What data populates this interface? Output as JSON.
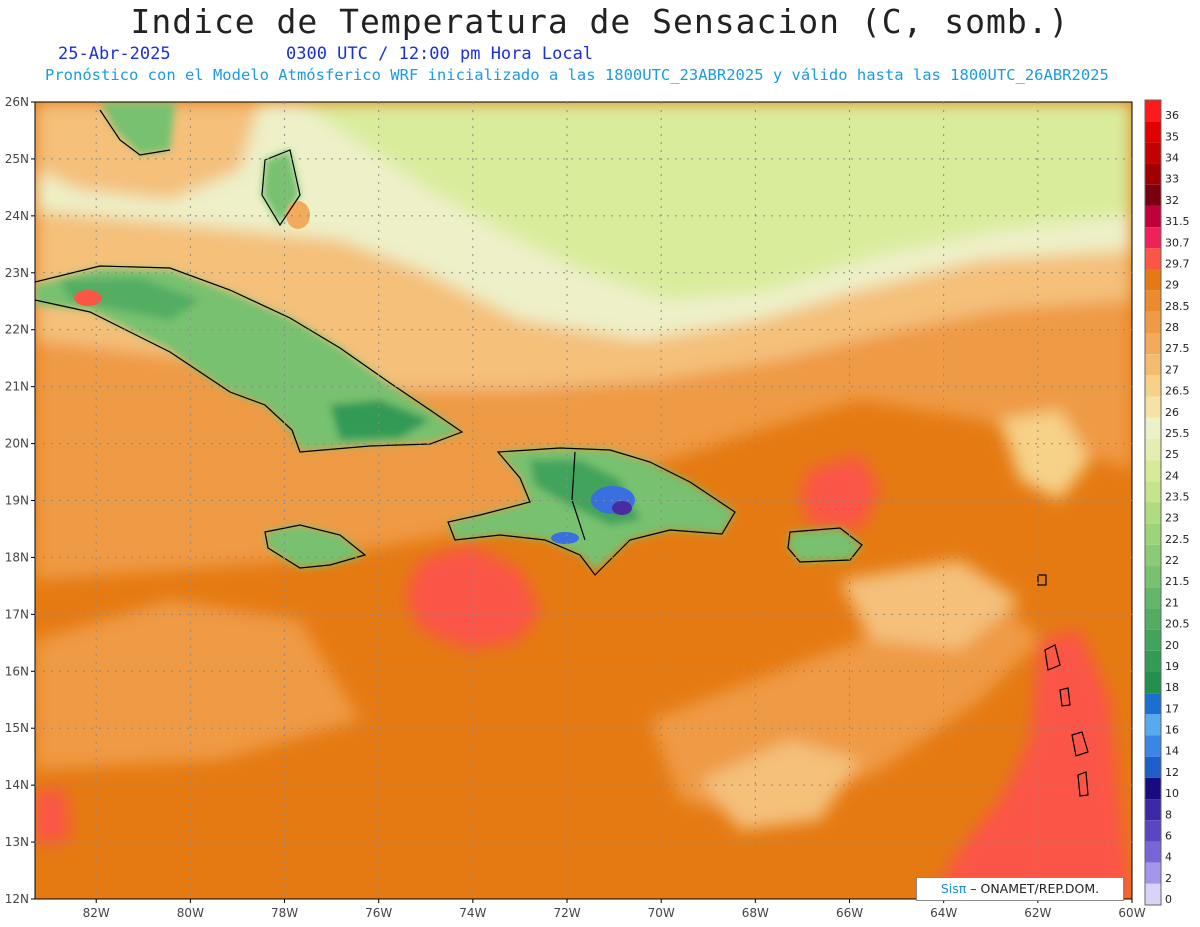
{
  "header": {
    "title": "Indice de Temperatura de Sensacion (C, somb.)",
    "date": "25-Abr-2025",
    "time": "0300 UTC / 12:00 pm Hora Local",
    "forecast_note": "Pronóstico con el Modelo Atmósferico WRF inicializado a las 1800UTC_23ABR2025 y válido hasta las  1800UTC_26ABR2025"
  },
  "map": {
    "lat_labels": [
      "26N",
      "25N",
      "24N",
      "23N",
      "22N",
      "21N",
      "20N",
      "19N",
      "18N",
      "17N",
      "16N",
      "15N",
      "14N",
      "13N",
      "12N"
    ],
    "lon_labels": [
      "82W",
      "80W",
      "78W",
      "76W",
      "74W",
      "72W",
      "70W",
      "68W",
      "66W",
      "64W",
      "62W",
      "60W"
    ],
    "lat_range": [
      12,
      26
    ],
    "lon_range": [
      -83.3,
      -60
    ],
    "grid": true,
    "colors": {
      "ocean_warm": "#e57a12",
      "ocean_mid": "#ef9a45",
      "ocean_cool": "#f4c07a",
      "north_light": "#d9ec9c",
      "north_pale": "#eef0c8",
      "hot_spot": "#fb5546",
      "land_green": "#6bbf6c",
      "land_dark": "#2f9a4c",
      "mountain_blue": "#3a6fe0",
      "mountain_violet": "#4a2ba0"
    }
  },
  "legend": {
    "values": [
      "36",
      "35",
      "34",
      "33",
      "32",
      "31.5",
      "30.7",
      "29.7",
      "29",
      "28.5",
      "28",
      "27.5",
      "27",
      "26.5",
      "26",
      "25.5",
      "25",
      "24",
      "23.5",
      "23",
      "22.5",
      "22",
      "21.5",
      "21",
      "20.5",
      "20",
      "19",
      "18",
      "17",
      "16",
      "14",
      "12",
      "10",
      "8",
      "6",
      "4",
      "2",
      "0"
    ],
    "colors": [
      "#ff1a1a",
      "#e00000",
      "#c40000",
      "#a00000",
      "#7a0010",
      "#c0003c",
      "#f0205a",
      "#fb5546",
      "#e57a12",
      "#eb8a2e",
      "#ef9a45",
      "#f2ab5c",
      "#f4bc70",
      "#f6d188",
      "#f7e2a6",
      "#eef0c8",
      "#e4eeb0",
      "#d6eb98",
      "#c5e58a",
      "#b0dc80",
      "#9dd47a",
      "#8acb75",
      "#77c16f",
      "#64b76a",
      "#52ad63",
      "#42a35c",
      "#339a55",
      "#22904e",
      "#1a6fd0",
      "#58aaf0",
      "#3a86e6",
      "#1e5ec8",
      "#180a80",
      "#3a28a8",
      "#5a46c0",
      "#7866d8",
      "#a496ec",
      "#d8d4f8"
    ]
  },
  "credit": {
    "brand": "Sisπ",
    "text": " – ONAMET/REP.DOM."
  }
}
